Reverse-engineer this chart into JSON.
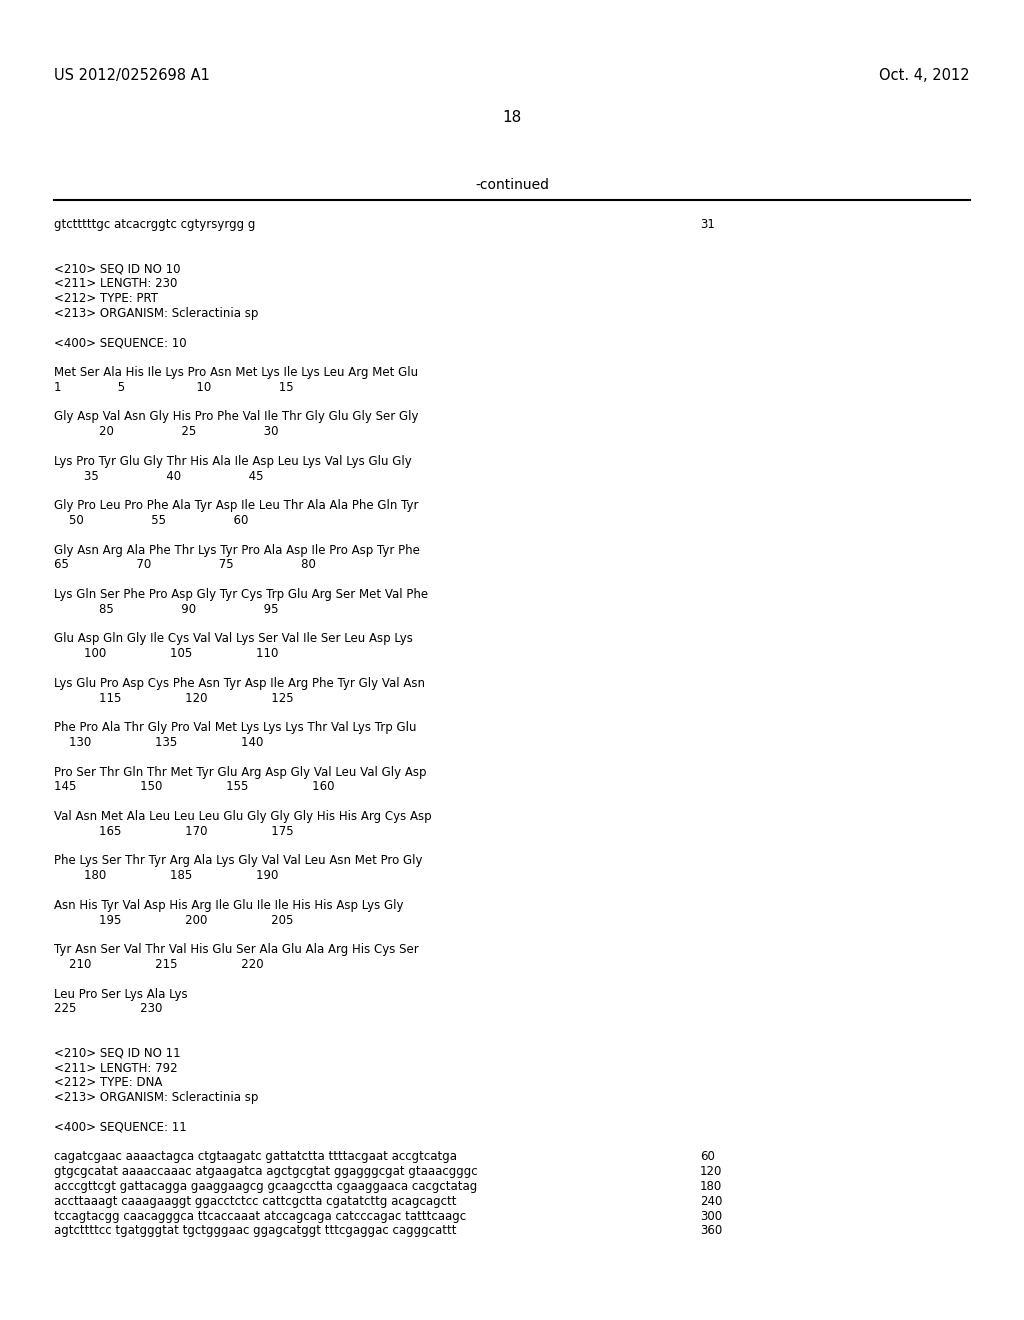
{
  "header_left": "US 2012/0252698 A1",
  "header_right": "Oct. 4, 2012",
  "page_number": "18",
  "continued_label": "-continued",
  "background_color": "#ffffff",
  "text_color": "#000000",
  "lines": [
    {
      "text": "gtctttttgc atcacrggtc cgtyrsyrgg g",
      "right_num": "31"
    },
    {
      "text": ""
    },
    {
      "text": ""
    },
    {
      "text": "<210> SEQ ID NO 10"
    },
    {
      "text": "<211> LENGTH: 230"
    },
    {
      "text": "<212> TYPE: PRT"
    },
    {
      "text": "<213> ORGANISM: Scleractinia sp"
    },
    {
      "text": ""
    },
    {
      "text": "<400> SEQUENCE: 10"
    },
    {
      "text": ""
    },
    {
      "text": "Met Ser Ala His Ile Lys Pro Asn Met Lys Ile Lys Leu Arg Met Glu"
    },
    {
      "text": "1               5                   10                  15"
    },
    {
      "text": ""
    },
    {
      "text": "Gly Asp Val Asn Gly His Pro Phe Val Ile Thr Gly Glu Gly Ser Gly"
    },
    {
      "text": "            20                  25                  30"
    },
    {
      "text": ""
    },
    {
      "text": "Lys Pro Tyr Glu Gly Thr His Ala Ile Asp Leu Lys Val Lys Glu Gly"
    },
    {
      "text": "        35                  40                  45"
    },
    {
      "text": ""
    },
    {
      "text": "Gly Pro Leu Pro Phe Ala Tyr Asp Ile Leu Thr Ala Ala Phe Gln Tyr"
    },
    {
      "text": "    50                  55                  60"
    },
    {
      "text": ""
    },
    {
      "text": "Gly Asn Arg Ala Phe Thr Lys Tyr Pro Ala Asp Ile Pro Asp Tyr Phe"
    },
    {
      "text": "65                  70                  75                  80"
    },
    {
      "text": ""
    },
    {
      "text": "Lys Gln Ser Phe Pro Asp Gly Tyr Cys Trp Glu Arg Ser Met Val Phe"
    },
    {
      "text": "            85                  90                  95"
    },
    {
      "text": ""
    },
    {
      "text": "Glu Asp Gln Gly Ile Cys Val Val Lys Ser Val Ile Ser Leu Asp Lys"
    },
    {
      "text": "        100                 105                 110"
    },
    {
      "text": ""
    },
    {
      "text": "Lys Glu Pro Asp Cys Phe Asn Tyr Asp Ile Arg Phe Tyr Gly Val Asn"
    },
    {
      "text": "            115                 120                 125"
    },
    {
      "text": ""
    },
    {
      "text": "Phe Pro Ala Thr Gly Pro Val Met Lys Lys Lys Thr Val Lys Trp Glu"
    },
    {
      "text": "    130                 135                 140"
    },
    {
      "text": ""
    },
    {
      "text": "Pro Ser Thr Gln Thr Met Tyr Glu Arg Asp Gly Val Leu Val Gly Asp"
    },
    {
      "text": "145                 150                 155                 160"
    },
    {
      "text": ""
    },
    {
      "text": "Val Asn Met Ala Leu Leu Leu Glu Gly Gly Gly His His Arg Cys Asp"
    },
    {
      "text": "            165                 170                 175"
    },
    {
      "text": ""
    },
    {
      "text": "Phe Lys Ser Thr Tyr Arg Ala Lys Gly Val Val Leu Asn Met Pro Gly"
    },
    {
      "text": "        180                 185                 190"
    },
    {
      "text": ""
    },
    {
      "text": "Asn His Tyr Val Asp His Arg Ile Glu Ile Ile His His Asp Lys Gly"
    },
    {
      "text": "            195                 200                 205"
    },
    {
      "text": ""
    },
    {
      "text": "Tyr Asn Ser Val Thr Val His Glu Ser Ala Glu Ala Arg His Cys Ser"
    },
    {
      "text": "    210                 215                 220"
    },
    {
      "text": ""
    },
    {
      "text": "Leu Pro Ser Lys Ala Lys"
    },
    {
      "text": "225                 230"
    },
    {
      "text": ""
    },
    {
      "text": ""
    },
    {
      "text": "<210> SEQ ID NO 11"
    },
    {
      "text": "<211> LENGTH: 792"
    },
    {
      "text": "<212> TYPE: DNA"
    },
    {
      "text": "<213> ORGANISM: Scleractinia sp"
    },
    {
      "text": ""
    },
    {
      "text": "<400> SEQUENCE: 11"
    },
    {
      "text": ""
    },
    {
      "text": "cagatcgaac aaaactagca ctgtaagatc gattatctta ttttacgaat accgtcatga",
      "right_num": "60"
    },
    {
      "text": "gtgcgcatat aaaaccaaac atgaagatca agctgcgtat ggagggcgat gtaaacgggc",
      "right_num": "120"
    },
    {
      "text": "acccgttcgt gattacagga gaaggaagcg gcaagcctta cgaaggaaca cacgctatag",
      "right_num": "180"
    },
    {
      "text": "accttaaagt caaagaaggt ggacctctcc cattcgctta cgatatcttg acagcagctt",
      "right_num": "240"
    },
    {
      "text": "tccagtacgg caacagggca ttcaccaaat atccagcaga catcccagac tatttcaagc",
      "right_num": "300"
    },
    {
      "text": "agtcttttcc tgatgggtat tgctgggaac ggagcatggt tttcgaggac cagggcattt",
      "right_num": "360"
    }
  ]
}
